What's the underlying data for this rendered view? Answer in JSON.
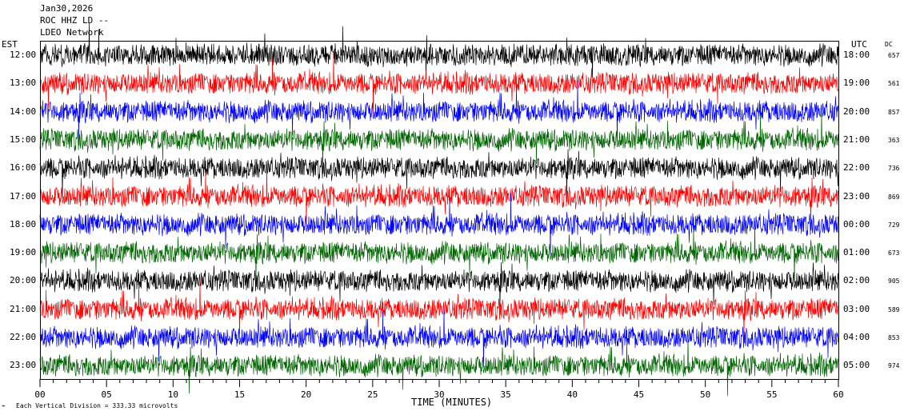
{
  "header": {
    "date": "Jan30,2026",
    "station": "ROC HHZ LD --",
    "source": "LDEO Network"
  },
  "left_axis_label": "EST",
  "right_axis_label": "UTC",
  "dc_label": "DC",
  "x_axis_label": "TIME (MINUTES)",
  "scale_note": "Each Vertical Division = 333.33 microvolts",
  "colors": {
    "cycle": [
      "#000000",
      "#ff0000",
      "#0000ff",
      "#006400"
    ],
    "background": "#ffffff"
  },
  "chart_data": {
    "type": "line",
    "title": "",
    "xlabel": "TIME (MINUTES)",
    "ylabel": "",
    "xlim": [
      0,
      60
    ],
    "x_ticks": [
      "00",
      "05",
      "10",
      "15",
      "20",
      "25",
      "30",
      "35",
      "40",
      "45",
      "50",
      "55",
      "60"
    ],
    "rows": [
      {
        "est": "12:00",
        "utc": "18:00",
        "dc": "657",
        "color": "#000000"
      },
      {
        "est": "13:00",
        "utc": "19:00",
        "dc": "561",
        "color": "#ff0000"
      },
      {
        "est": "14:00",
        "utc": "20:00",
        "dc": "857",
        "color": "#0000ff"
      },
      {
        "est": "15:00",
        "utc": "21:00",
        "dc": "363",
        "color": "#006400"
      },
      {
        "est": "16:00",
        "utc": "22:00",
        "dc": "736",
        "color": "#000000"
      },
      {
        "est": "17:00",
        "utc": "23:00",
        "dc": "869",
        "color": "#ff0000"
      },
      {
        "est": "18:00",
        "utc": "00:00",
        "dc": "729",
        "color": "#0000ff"
      },
      {
        "est": "19:00",
        "utc": "01:00",
        "dc": "673",
        "color": "#006400"
      },
      {
        "est": "20:00",
        "utc": "02:00",
        "dc": "905",
        "color": "#000000"
      },
      {
        "est": "21:00",
        "utc": "03:00",
        "dc": "589",
        "color": "#ff0000"
      },
      {
        "est": "22:00",
        "utc": "04:00",
        "dc": "853",
        "color": "#0000ff"
      },
      {
        "est": "23:00",
        "utc": "05:00",
        "dc": "974",
        "color": "#006400"
      }
    ]
  }
}
